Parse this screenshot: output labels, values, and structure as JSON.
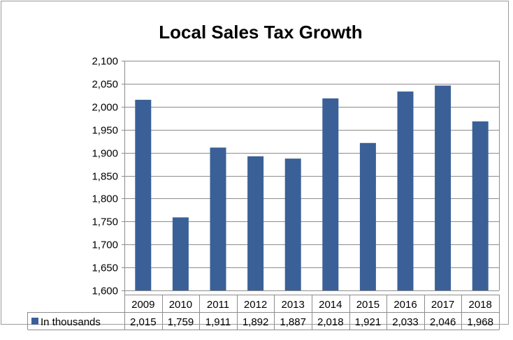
{
  "chart_data": {
    "type": "bar",
    "title": "Local Sales Tax Growth",
    "categories": [
      "2009",
      "2010",
      "2011",
      "2012",
      "2013",
      "2014",
      "2015",
      "2016",
      "2017",
      "2018"
    ],
    "series": [
      {
        "name": "In thousands",
        "values": [
          2015,
          1759,
          1911,
          1892,
          1887,
          2018,
          1921,
          2033,
          2046,
          1968
        ],
        "labels": [
          "2,015",
          "1,759",
          "1,911",
          "1,892",
          "1,887",
          "2,018",
          "1,921",
          "2,033",
          "2,046",
          "1,968"
        ]
      }
    ],
    "ylim": [
      1600,
      2100
    ],
    "yticks": [
      1600,
      1650,
      1700,
      1750,
      1800,
      1850,
      1900,
      1950,
      2000,
      2050,
      2100
    ],
    "ytick_labels": [
      "1,600",
      "1,650",
      "1,700",
      "1,750",
      "1,800",
      "1,850",
      "1,900",
      "1,950",
      "2,000",
      "2,050",
      "2,100"
    ],
    "grid": true,
    "legend": "data-table",
    "colors": {
      "bar": "#3a6097",
      "grid": "#8c8c8c"
    }
  }
}
